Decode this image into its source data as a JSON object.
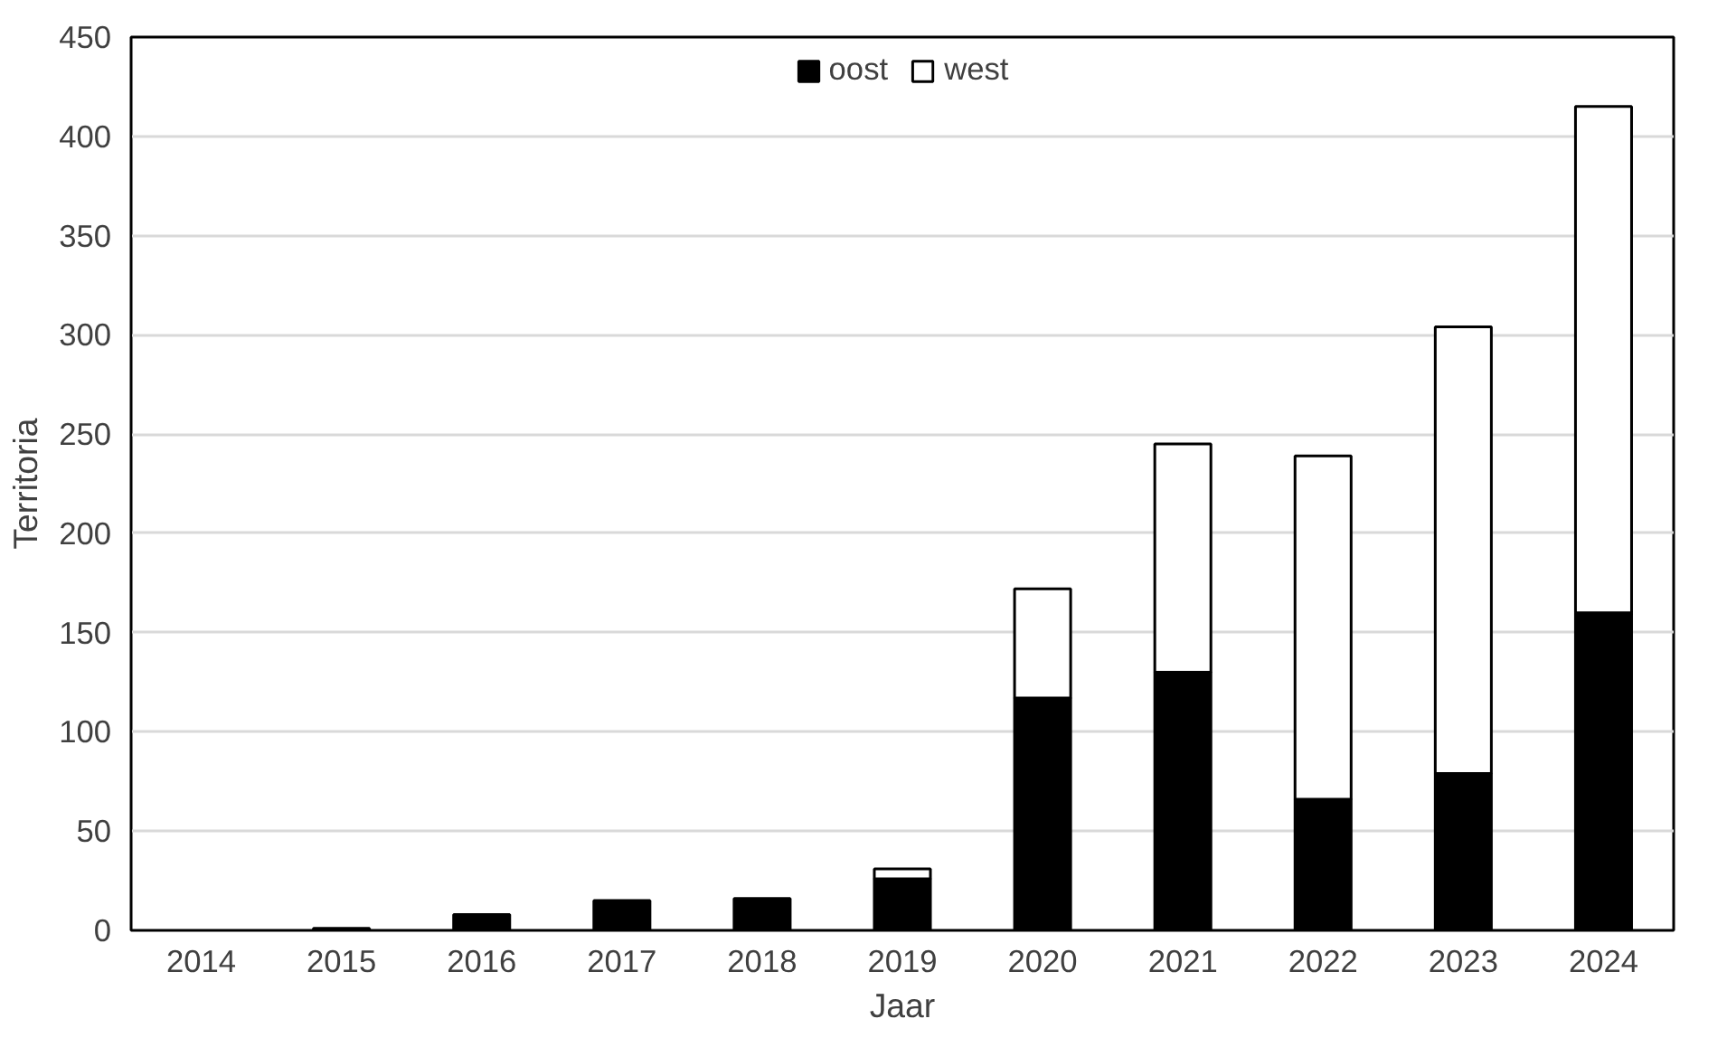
{
  "chart_data": {
    "type": "bar",
    "stacked": true,
    "xlabel": "Jaar",
    "ylabel": "Territoria",
    "categories": [
      "2014",
      "2015",
      "2016",
      "2017",
      "2018",
      "2019",
      "2020",
      "2021",
      "2022",
      "2023",
      "2024"
    ],
    "series": [
      {
        "name": "oost",
        "color": "#000000",
        "values": [
          0,
          1,
          8,
          15,
          16,
          26,
          117,
          130,
          66,
          79,
          160
        ]
      },
      {
        "name": "west",
        "color": "#ffffff",
        "values": [
          null,
          null,
          null,
          null,
          null,
          5,
          55,
          115,
          173,
          225,
          255
        ]
      }
    ],
    "ylim": [
      0,
      450
    ],
    "yticks": [
      0,
      50,
      100,
      150,
      200,
      250,
      300,
      350,
      400,
      450
    ],
    "grid": "y",
    "legend": "top"
  }
}
